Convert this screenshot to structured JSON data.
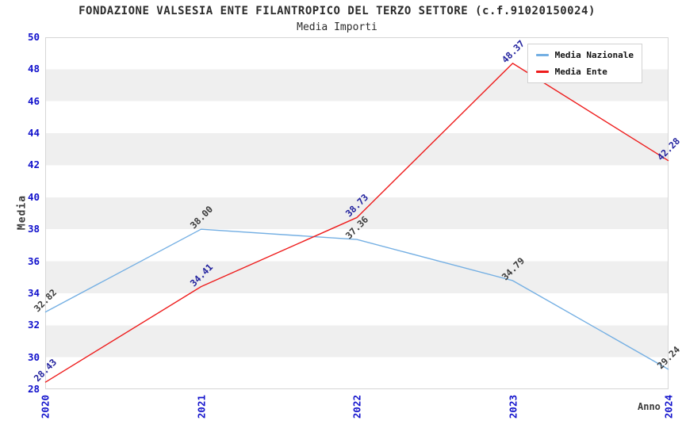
{
  "chart_data": {
    "type": "line",
    "title": "FONDAZIONE VALSESIA ENTE FILANTROPICO DEL TERZO SETTORE (c.f.91020150024)",
    "subtitle": "Media Importi",
    "x": [
      "2020",
      "2021",
      "2022",
      "2023",
      "2024"
    ],
    "series": [
      {
        "name": "Media Nazionale",
        "color": "#74afe3",
        "label_color": "#3b3b3b",
        "values": [
          32.82,
          38.0,
          37.36,
          34.79,
          29.24
        ]
      },
      {
        "name": "Media Ente",
        "color": "#ee1c1c",
        "label_color": "#22229e",
        "values": [
          28.43,
          34.41,
          38.73,
          48.37,
          42.28
        ]
      }
    ],
    "xlabel": "Anno",
    "ylabel": "Media",
    "ylim": [
      28,
      50
    ],
    "ytick_step": 2,
    "grid": "horizontal-bands",
    "band_color": "#efefef",
    "tick_color": "#1212cc",
    "axis_title_color": "#3b3b3b",
    "title_color": "#2b2b2b",
    "legend_position": "top-right"
  }
}
